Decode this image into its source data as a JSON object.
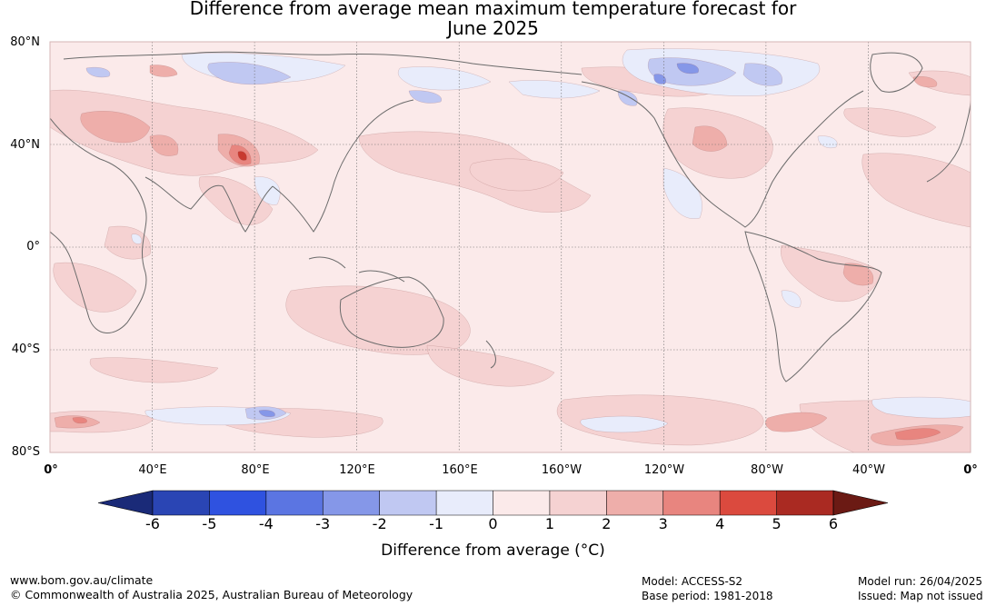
{
  "title_line1": "Difference from average mean maximum temperature forecast for",
  "title_line2": "June 2025",
  "lat_labels": [
    "80°N",
    "40°N",
    "0°",
    "40°S",
    "80°S"
  ],
  "lon_labels": [
    "0°",
    "40°E",
    "80°E",
    "120°E",
    "160°E",
    "160°W",
    "120°W",
    "80°W",
    "40°W",
    "0°"
  ],
  "colorbar": {
    "ticks": [
      "-6",
      "-5",
      "-4",
      "-3",
      "-2",
      "-1",
      "0",
      "1",
      "2",
      "3",
      "4",
      "5",
      "6"
    ],
    "label": "Difference from average ($^\\circ$C)",
    "under_color": "#1a2a78",
    "over_color": "#6b1a14",
    "colors": [
      "#2a45b4",
      "#2f52e0",
      "#5b75e2",
      "#8597e8",
      "#c0c8f2",
      "#e8ecfb",
      "#fbeaea",
      "#f5d2d2",
      "#eeaeaa",
      "#e8857f",
      "#db4a3e",
      "#aa2a22"
    ]
  },
  "map_colors": {
    "background": "#fbeaea",
    "light_warm": "#f5d2d2",
    "warm": "#eeaeaa",
    "hot": "#e8857f",
    "very_hot": "#c83a30",
    "light_cool": "#e8ecfb",
    "cool": "#c0c8f2",
    "cold": "#8597e8",
    "coast": "#6b6b6b"
  },
  "footer": {
    "website": "www.bom.gov.au/climate",
    "copyright": "© Commonwealth of Australia 2025, Australian Bureau of Meteorology",
    "model": "Model: ACCESS-S2",
    "base_period": "Base period: 1981-2018",
    "model_run": "Model run: 26/04/2025",
    "issued": "Issued: Map not issued"
  }
}
